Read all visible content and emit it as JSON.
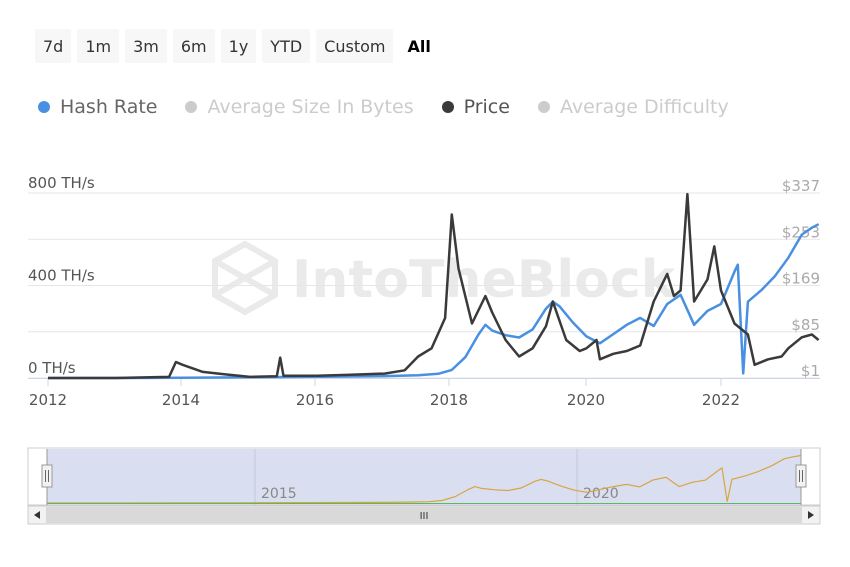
{
  "range_selector": {
    "buttons": [
      "7d",
      "1m",
      "3m",
      "6m",
      "1y",
      "YTD",
      "Custom",
      "All"
    ],
    "selected": "All"
  },
  "legend": [
    {
      "label": "Hash Rate",
      "color": "#4a90e2",
      "active": true
    },
    {
      "label": "Average Size In Bytes",
      "color": "#cccccc",
      "active": false
    },
    {
      "label": "Price",
      "color": "#3a3a3a",
      "active": true
    },
    {
      "label": "Average Difficulty",
      "color": "#cccccc",
      "active": false
    }
  ],
  "watermark": "IntoTheBlock",
  "chart_data": {
    "type": "line",
    "x_ticks": [
      "2012",
      "2014",
      "2016",
      "2018",
      "2020",
      "2022"
    ],
    "x_range": [
      2012.0,
      2023.45
    ],
    "y_left": {
      "ticks": [
        "0 TH/s",
        "400 TH/s",
        "800 TH/s"
      ],
      "range": [
        0,
        800
      ]
    },
    "y_right": {
      "ticks": [
        "$1",
        "$85",
        "$169",
        "$253",
        "$337"
      ],
      "range": [
        1,
        337
      ]
    },
    "series": [
      {
        "name": "Hash Rate",
        "axis": "left",
        "color": "#4a90e2",
        "points": [
          [
            2012.0,
            0
          ],
          [
            2013.0,
            0
          ],
          [
            2014.0,
            1
          ],
          [
            2015.0,
            3
          ],
          [
            2016.0,
            5
          ],
          [
            2017.0,
            8
          ],
          [
            2017.5,
            12
          ],
          [
            2017.8,
            18
          ],
          [
            2018.0,
            35
          ],
          [
            2018.2,
            90
          ],
          [
            2018.4,
            190
          ],
          [
            2018.5,
            230
          ],
          [
            2018.6,
            205
          ],
          [
            2018.8,
            185
          ],
          [
            2019.0,
            175
          ],
          [
            2019.2,
            210
          ],
          [
            2019.4,
            300
          ],
          [
            2019.5,
            330
          ],
          [
            2019.6,
            310
          ],
          [
            2019.8,
            240
          ],
          [
            2020.0,
            180
          ],
          [
            2020.2,
            150
          ],
          [
            2020.4,
            190
          ],
          [
            2020.6,
            230
          ],
          [
            2020.8,
            260
          ],
          [
            2021.0,
            225
          ],
          [
            2021.2,
            320
          ],
          [
            2021.4,
            360
          ],
          [
            2021.6,
            230
          ],
          [
            2021.8,
            290
          ],
          [
            2022.0,
            320
          ],
          [
            2022.2,
            460
          ],
          [
            2022.25,
            490
          ],
          [
            2022.33,
            20
          ],
          [
            2022.4,
            330
          ],
          [
            2022.6,
            380
          ],
          [
            2022.8,
            440
          ],
          [
            2023.0,
            520
          ],
          [
            2023.2,
            620
          ],
          [
            2023.35,
            650
          ],
          [
            2023.45,
            665
          ]
        ]
      },
      {
        "name": "Price",
        "axis": "right",
        "color": "#3a3a3a",
        "points": [
          [
            2012.0,
            1
          ],
          [
            2013.0,
            1
          ],
          [
            2013.8,
            3
          ],
          [
            2013.9,
            30
          ],
          [
            2014.0,
            25
          ],
          [
            2014.3,
            12
          ],
          [
            2014.6,
            8
          ],
          [
            2015.0,
            3
          ],
          [
            2015.4,
            4
          ],
          [
            2015.45,
            38
          ],
          [
            2015.5,
            5
          ],
          [
            2016.0,
            5
          ],
          [
            2016.5,
            7
          ],
          [
            2017.0,
            9
          ],
          [
            2017.3,
            15
          ],
          [
            2017.5,
            40
          ],
          [
            2017.7,
            55
          ],
          [
            2017.9,
            110
          ],
          [
            2018.0,
            298
          ],
          [
            2018.1,
            200
          ],
          [
            2018.3,
            100
          ],
          [
            2018.5,
            150
          ],
          [
            2018.6,
            120
          ],
          [
            2018.8,
            70
          ],
          [
            2019.0,
            40
          ],
          [
            2019.2,
            55
          ],
          [
            2019.4,
            95
          ],
          [
            2019.5,
            140
          ],
          [
            2019.7,
            70
          ],
          [
            2019.9,
            50
          ],
          [
            2020.0,
            55
          ],
          [
            2020.15,
            70
          ],
          [
            2020.2,
            35
          ],
          [
            2020.4,
            45
          ],
          [
            2020.6,
            50
          ],
          [
            2020.8,
            60
          ],
          [
            2021.0,
            140
          ],
          [
            2021.2,
            190
          ],
          [
            2021.3,
            150
          ],
          [
            2021.4,
            160
          ],
          [
            2021.5,
            335
          ],
          [
            2021.6,
            140
          ],
          [
            2021.8,
            180
          ],
          [
            2021.9,
            240
          ],
          [
            2022.0,
            160
          ],
          [
            2022.2,
            100
          ],
          [
            2022.4,
            80
          ],
          [
            2022.5,
            25
          ],
          [
            2022.7,
            35
          ],
          [
            2022.9,
            40
          ],
          [
            2023.0,
            55
          ],
          [
            2023.2,
            75
          ],
          [
            2023.35,
            80
          ],
          [
            2023.45,
            70
          ]
        ]
      }
    ]
  },
  "navigator": {
    "labels": [
      "2015",
      "2020"
    ],
    "scroll_grip": "III"
  }
}
